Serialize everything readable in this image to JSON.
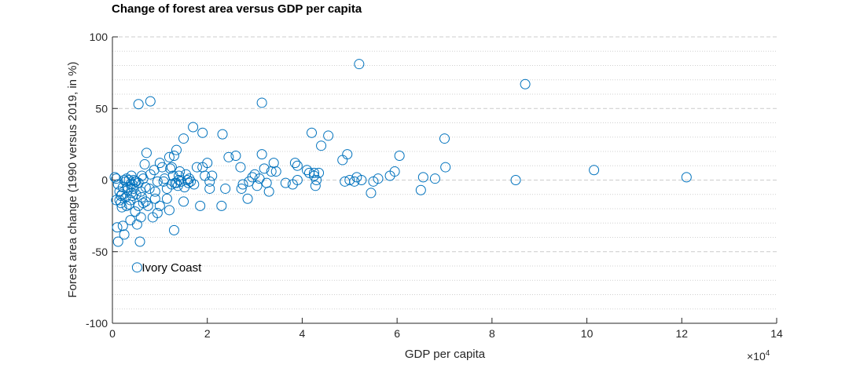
{
  "chart_data": {
    "type": "scatter",
    "title": "Change of forest area versus GDP per capita",
    "xlabel": "GDP per capita",
    "ylabel": "Forest area change (1990 versus 2019, in %)",
    "x_exponent_base": "×10",
    "x_exponent_power": "4",
    "xlim": [
      0,
      14
    ],
    "ylim": [
      -100,
      100
    ],
    "xticks": [
      "0",
      "2",
      "4",
      "6",
      "8",
      "10",
      "12",
      "14"
    ],
    "yticks": [
      "-100",
      "-50",
      "0",
      "50",
      "100"
    ],
    "grid": "y-major-dashed-minor-dotted",
    "marker": "open-circle",
    "series_color": "#0072BD",
    "annotation": {
      "text": "Ivory Coast",
      "x": 0.52,
      "y": -61
    },
    "points": [
      [
        0.52,
        -61
      ],
      [
        0.05,
        2
      ],
      [
        0.08,
        -14
      ],
      [
        0.1,
        -33
      ],
      [
        0.12,
        -43
      ],
      [
        0.15,
        -8
      ],
      [
        0.18,
        -16
      ],
      [
        0.2,
        -10
      ],
      [
        0.22,
        -32
      ],
      [
        0.25,
        0
      ],
      [
        0.25,
        -38
      ],
      [
        0.28,
        -12
      ],
      [
        0.3,
        -18
      ],
      [
        0.3,
        1
      ],
      [
        0.32,
        -5
      ],
      [
        0.35,
        0
      ],
      [
        0.38,
        -28
      ],
      [
        0.38,
        -14
      ],
      [
        0.4,
        3
      ],
      [
        0.4,
        -9
      ],
      [
        0.42,
        -3
      ],
      [
        0.45,
        -6
      ],
      [
        0.45,
        0
      ],
      [
        0.48,
        -22
      ],
      [
        0.5,
        -1
      ],
      [
        0.5,
        -10
      ],
      [
        0.52,
        -31
      ],
      [
        0.55,
        53
      ],
      [
        0.55,
        -18
      ],
      [
        0.55,
        -2
      ],
      [
        0.58,
        -43
      ],
      [
        0.6,
        -8
      ],
      [
        0.62,
        -12
      ],
      [
        0.65,
        1
      ],
      [
        0.68,
        11
      ],
      [
        0.7,
        -15
      ],
      [
        0.7,
        -5
      ],
      [
        0.72,
        19
      ],
      [
        0.75,
        -18
      ],
      [
        0.78,
        -6
      ],
      [
        0.8,
        4
      ],
      [
        0.8,
        55
      ],
      [
        0.85,
        -26
      ],
      [
        0.88,
        7
      ],
      [
        0.9,
        -8
      ],
      [
        0.9,
        -13
      ],
      [
        0.95,
        -1
      ],
      [
        0.95,
        -23
      ],
      [
        1.0,
        12
      ],
      [
        1.05,
        9
      ],
      [
        1.1,
        1
      ],
      [
        1.15,
        -6
      ],
      [
        1.15,
        -13
      ],
      [
        1.2,
        16
      ],
      [
        1.2,
        -21
      ],
      [
        1.22,
        8
      ],
      [
        1.25,
        -3
      ],
      [
        1.28,
        3
      ],
      [
        1.3,
        17
      ],
      [
        1.3,
        -35
      ],
      [
        1.32,
        -2
      ],
      [
        1.35,
        21
      ],
      [
        1.38,
        -4
      ],
      [
        1.4,
        0
      ],
      [
        1.42,
        6
      ],
      [
        1.45,
        -1
      ],
      [
        1.5,
        29
      ],
      [
        1.5,
        -15
      ],
      [
        1.52,
        -5
      ],
      [
        1.55,
        4
      ],
      [
        1.6,
        -2
      ],
      [
        1.62,
        1
      ],
      [
        1.65,
        -1
      ],
      [
        1.7,
        37
      ],
      [
        1.72,
        -3
      ],
      [
        1.78,
        9
      ],
      [
        1.85,
        -18
      ],
      [
        1.9,
        9
      ],
      [
        1.9,
        33
      ],
      [
        1.95,
        3
      ],
      [
        2.0,
        12
      ],
      [
        2.05,
        -6
      ],
      [
        2.05,
        -1
      ],
      [
        2.1,
        3
      ],
      [
        2.3,
        -18
      ],
      [
        2.32,
        32
      ],
      [
        2.38,
        -6
      ],
      [
        2.45,
        16
      ],
      [
        2.6,
        17
      ],
      [
        2.7,
        9
      ],
      [
        2.72,
        -6
      ],
      [
        2.75,
        -3
      ],
      [
        2.85,
        -13
      ],
      [
        2.88,
        -1
      ],
      [
        2.95,
        2
      ],
      [
        3.0,
        4
      ],
      [
        3.05,
        -4
      ],
      [
        3.1,
        1
      ],
      [
        3.15,
        18
      ],
      [
        3.15,
        54
      ],
      [
        3.2,
        8
      ],
      [
        3.25,
        -2
      ],
      [
        3.3,
        -8
      ],
      [
        3.35,
        6
      ],
      [
        3.4,
        12
      ],
      [
        3.45,
        6
      ],
      [
        3.65,
        -2
      ],
      [
        3.8,
        -3
      ],
      [
        3.85,
        12
      ],
      [
        3.9,
        10
      ],
      [
        3.9,
        0
      ],
      [
        4.1,
        7
      ],
      [
        4.15,
        5
      ],
      [
        4.2,
        33
      ],
      [
        4.25,
        3
      ],
      [
        4.25,
        5
      ],
      [
        4.28,
        -4
      ],
      [
        4.3,
        0
      ],
      [
        4.35,
        5
      ],
      [
        4.4,
        24
      ],
      [
        4.55,
        31
      ],
      [
        4.85,
        14
      ],
      [
        4.9,
        -1
      ],
      [
        4.95,
        18
      ],
      [
        5.0,
        0
      ],
      [
        5.1,
        -1
      ],
      [
        5.15,
        2
      ],
      [
        5.2,
        81
      ],
      [
        5.25,
        0
      ],
      [
        5.45,
        -9
      ],
      [
        5.5,
        -1
      ],
      [
        5.6,
        1
      ],
      [
        5.85,
        3
      ],
      [
        5.95,
        6
      ],
      [
        6.05,
        17
      ],
      [
        6.5,
        -7
      ],
      [
        6.55,
        2
      ],
      [
        6.8,
        1
      ],
      [
        7.0,
        29
      ],
      [
        7.02,
        9
      ],
      [
        8.5,
        0
      ],
      [
        8.7,
        67
      ],
      [
        10.15,
        7
      ],
      [
        12.1,
        2
      ],
      [
        0.12,
        -3
      ],
      [
        0.18,
        -11
      ],
      [
        0.22,
        -5
      ],
      [
        0.28,
        -1
      ],
      [
        0.32,
        -7
      ],
      [
        0.35,
        -17
      ],
      [
        0.42,
        -11
      ],
      [
        0.48,
        -1
      ],
      [
        0.6,
        -26
      ],
      [
        0.65,
        -16
      ],
      [
        1.0,
        -18
      ],
      [
        1.08,
        -1
      ],
      [
        1.25,
        9
      ],
      [
        1.35,
        -2
      ],
      [
        1.4,
        3
      ],
      [
        1.58,
        0
      ],
      [
        0.08,
        1
      ],
      [
        0.15,
        -14
      ],
      [
        0.2,
        -19
      ],
      [
        0.38,
        -3
      ],
      [
        0.62,
        3
      ]
    ]
  }
}
